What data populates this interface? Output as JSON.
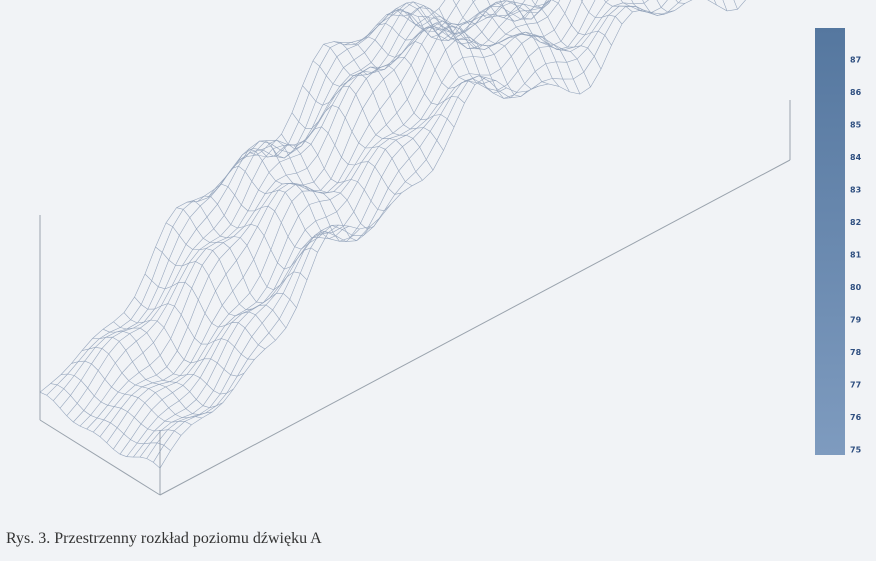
{
  "figure": {
    "colorbar_ticks": [
      "87",
      "86",
      "85",
      "84",
      "83",
      "82",
      "81",
      "80",
      "79",
      "78",
      "77",
      "76",
      "75"
    ],
    "caption": "Rys. 3. Przestrzenny rozkład poziomu dźwięku A"
  }
}
